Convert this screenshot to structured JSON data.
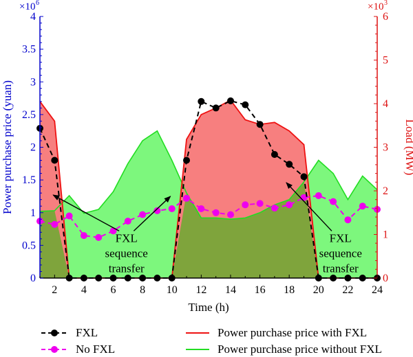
{
  "chart_data": {
    "type": "area",
    "xlabel": "Time (h)",
    "y_left_label": "Power purchase price (yuan)",
    "y_left_multiplier": "×10",
    "y_left_exp": "6",
    "y_right_label": "Load (MW)",
    "y_right_multiplier": "×10",
    "y_right_exp": "3",
    "x": [
      1,
      2,
      3,
      4,
      5,
      6,
      7,
      8,
      9,
      10,
      11,
      12,
      13,
      14,
      15,
      16,
      17,
      18,
      19,
      20,
      21,
      22,
      23,
      24
    ],
    "xlim": [
      1,
      24
    ],
    "x_ticks": [
      2,
      4,
      6,
      8,
      10,
      12,
      14,
      16,
      18,
      20,
      22,
      24
    ],
    "ylim_left": [
      0,
      4
    ],
    "y_left_ticks": [
      "0",
      "0.5",
      "1",
      "1.5",
      "2",
      "2.5",
      "3",
      "3.5",
      "4"
    ],
    "y_left_tick_values": [
      0,
      0.5,
      1,
      1.5,
      2,
      2.5,
      3,
      3.5,
      4
    ],
    "ylim_right": [
      0,
      6
    ],
    "y_right_ticks": [
      "0",
      "1",
      "2",
      "3",
      "4",
      "5",
      "6"
    ],
    "grid": false,
    "series": [
      {
        "name": "FXL",
        "axis": "left",
        "style": "dashed-markers",
        "color": "#000000",
        "values": [
          2.29,
          1.8,
          0,
          0,
          0,
          0,
          0,
          0,
          0,
          0,
          1.8,
          2.7,
          2.6,
          2.71,
          2.65,
          2.35,
          1.89,
          1.74,
          1.55,
          0,
          0,
          0,
          0,
          0
        ]
      },
      {
        "name": "No FXL",
        "axis": "left",
        "style": "dashed-markers",
        "color": "#ee00ee",
        "values": [
          0.87,
          0.82,
          0.95,
          0.65,
          0.62,
          0.72,
          0.87,
          0.97,
          1.03,
          1.06,
          1.22,
          1.06,
          1.0,
          0.97,
          1.12,
          1.14,
          1.07,
          1.12,
          1.23,
          1.26,
          1.17,
          0.89,
          1.1,
          1.05
        ]
      },
      {
        "name": "Power purchase price with FXL",
        "axis": "left",
        "style": "area",
        "color": "#ee1111",
        "fill": "#f77f7f",
        "values": [
          2.7,
          2.4,
          0,
          0,
          0,
          0,
          0,
          0,
          0,
          0,
          2.12,
          2.5,
          2.6,
          2.72,
          2.42,
          2.35,
          2.38,
          2.25,
          2.04,
          0,
          0,
          0,
          0,
          0
        ]
      },
      {
        "name": "Power purchase price without FXL",
        "axis": "left",
        "style": "area",
        "color": "#22dd22",
        "fill": "#7df77d",
        "values": [
          1.02,
          1.03,
          1.26,
          0.99,
          1.05,
          1.32,
          1.75,
          2.1,
          2.25,
          1.8,
          1.3,
          0.92,
          0.92,
          0.9,
          0.92,
          1.0,
          1.12,
          1.2,
          1.47,
          1.8,
          1.6,
          1.2,
          1.56,
          1.35
        ]
      }
    ],
    "annotations": [
      {
        "lines": [
          "FXL",
          "sequence",
          "transfer"
        ],
        "from_x": 7.3,
        "from_y": 0.6,
        "to_x": 1.9,
        "to_y": 1.27,
        "to2_x": 9.9,
        "to2_y": 1.25,
        "text_x": 6.9,
        "text_y": 0.55
      },
      {
        "lines": [
          "FXL",
          "sequence",
          "transfer"
        ],
        "from_x": 21.8,
        "from_y": 0.8,
        "to_x": 17.8,
        "to_y": 1.46,
        "text_x": 21.5,
        "text_y": 0.55
      }
    ]
  },
  "legend": {
    "fxl": "FXL",
    "no_fxl": "No FXL",
    "with_fxl": "Power purchase price with FXL",
    "without_fxl": "Power purchase price without FXL"
  }
}
